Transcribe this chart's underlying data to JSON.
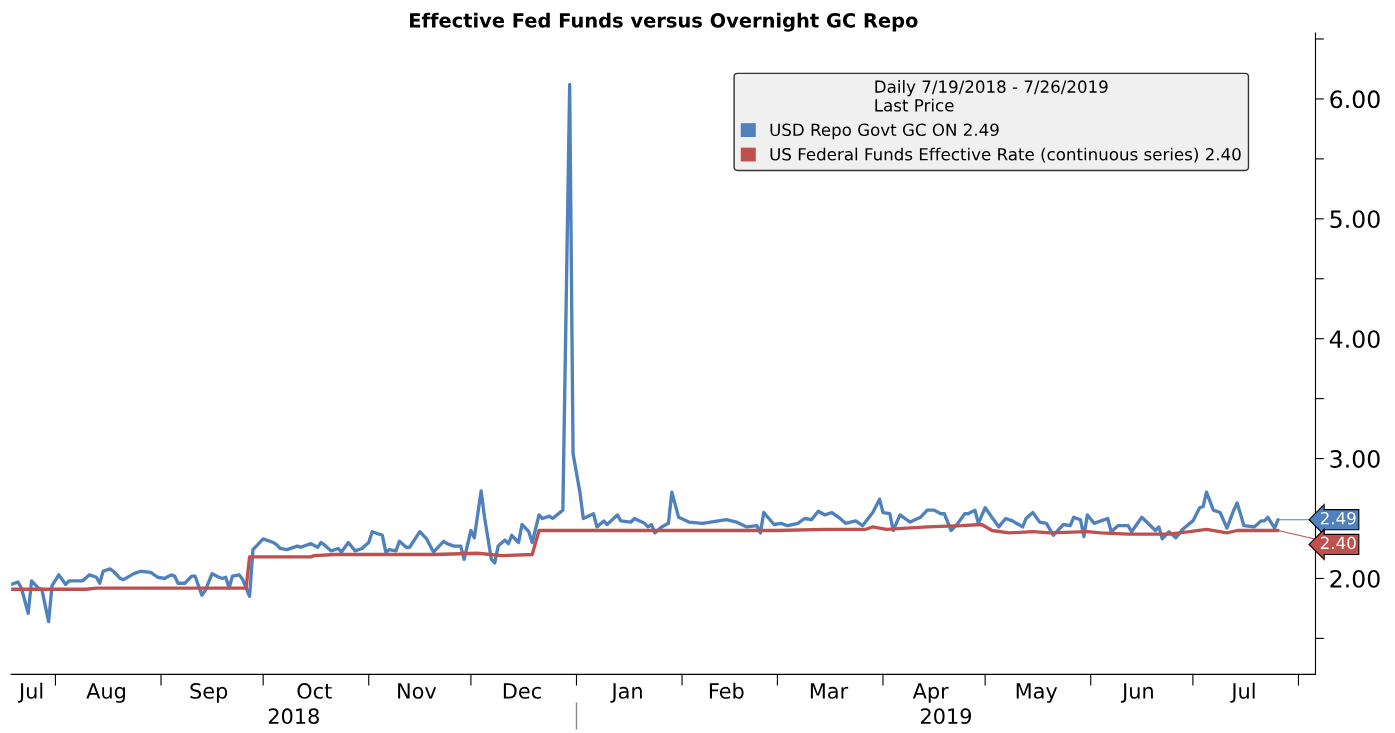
{
  "chart_data": {
    "type": "line",
    "title": "Effective Fed Funds versus Overnight GC Repo",
    "legend_title": "Daily 7/19/2018 - 7/26/2019\nLast Price",
    "legend": "top right",
    "grid": false,
    "xlim": [
      "2018-07-19",
      "2019-08-06"
    ],
    "xticks": [
      {
        "value": "2018-07-25",
        "label": "Jul"
      },
      {
        "value": "2018-08-01",
        "label": null
      },
      {
        "value": "2018-08-16",
        "label": "Aug"
      },
      {
        "value": "2018-09-01",
        "label": null
      },
      {
        "value": "2018-09-15",
        "label": "Sep"
      },
      {
        "value": "2018-10-01",
        "label": null
      },
      {
        "value": "2018-10-16",
        "label": "Oct"
      },
      {
        "value": "2018-11-01",
        "label": null
      },
      {
        "value": "2018-11-15",
        "label": "Nov"
      },
      {
        "value": "2018-12-01",
        "label": null
      },
      {
        "value": "2018-12-16",
        "label": "Dec"
      },
      {
        "value": "2019-01-01",
        "label": null
      },
      {
        "value": "2019-01-16",
        "label": "Jan"
      },
      {
        "value": "2019-02-01",
        "label": null
      },
      {
        "value": "2019-02-14",
        "label": "Feb"
      },
      {
        "value": "2019-03-01",
        "label": null
      },
      {
        "value": "2019-03-16",
        "label": "Mar"
      },
      {
        "value": "2019-04-01",
        "label": null
      },
      {
        "value": "2019-04-15",
        "label": "Apr"
      },
      {
        "value": "2019-05-01",
        "label": null
      },
      {
        "value": "2019-05-16",
        "label": "May"
      },
      {
        "value": "2019-06-01",
        "label": null
      },
      {
        "value": "2019-06-15",
        "label": "Jun"
      },
      {
        "value": "2019-07-01",
        "label": null
      },
      {
        "value": "2019-07-16",
        "label": "Jul"
      },
      {
        "value": "2019-08-01",
        "label": null
      }
    ],
    "ylim": [
      1.2,
      6.55
    ],
    "yticks": [
      {
        "value": 1.5,
        "label": null
      },
      {
        "value": 2,
        "label": "2.00"
      },
      {
        "value": 2.5,
        "label": null
      },
      {
        "value": 3,
        "label": "3.00"
      },
      {
        "value": 3.5,
        "label": null
      },
      {
        "value": 4,
        "label": "4.00"
      },
      {
        "value": 4.5,
        "label": null
      },
      {
        "value": 5,
        "label": "5.00"
      },
      {
        "value": 5.5,
        "label": null
      },
      {
        "value": 6,
        "label": "6.00"
      },
      {
        "value": 6.5,
        "label": null
      }
    ],
    "annotations": [
      "2018",
      "2019",
      {
        "text": "2.49",
        "x": "2019-07-26",
        "y": 2.49
      },
      {
        "text": "2.40",
        "x": "2019-07-26",
        "y": 2.4
      }
    ],
    "series": [
      {
        "name": "USD Repo Govt GC ON 2.49",
        "color": "#4f81bd",
        "x": [
          "2018-07-19",
          "2018-07-21",
          "2018-07-22",
          "2018-07-24",
          "2018-07-25",
          "2018-07-27",
          "2018-07-28",
          "2018-07-30",
          "2018-07-31",
          "2018-08-02",
          "2018-08-04",
          "2018-08-05",
          "2018-08-09",
          "2018-08-11",
          "2018-08-13",
          "2018-08-14",
          "2018-08-15",
          "2018-08-17",
          "2018-08-18",
          "2018-08-20",
          "2018-08-21",
          "2018-08-24",
          "2018-08-26",
          "2018-08-29",
          "2018-08-31",
          "2018-09-02",
          "2018-09-04",
          "2018-09-05",
          "2018-09-06",
          "2018-09-08",
          "2018-09-10",
          "2018-09-11",
          "2018-09-13",
          "2018-09-14",
          "2018-09-16",
          "2018-09-18",
          "2018-09-19",
          "2018-09-20",
          "2018-09-21",
          "2018-09-22",
          "2018-09-24",
          "2018-09-25",
          "2018-09-27",
          "2018-09-28",
          "2018-10-01",
          "2018-10-02",
          "2018-10-04",
          "2018-10-05",
          "2018-10-06",
          "2018-10-08",
          "2018-10-11",
          "2018-10-12",
          "2018-10-15",
          "2018-10-17",
          "2018-10-18",
          "2018-10-19",
          "2018-10-21",
          "2018-10-23",
          "2018-10-24",
          "2018-10-26",
          "2018-10-28",
          "2018-10-30",
          "2018-11-01",
          "2018-11-02",
          "2018-11-05",
          "2018-11-06",
          "2018-11-07",
          "2018-11-09",
          "2018-11-10",
          "2018-11-12",
          "2018-11-13",
          "2018-11-16",
          "2018-11-18",
          "2018-11-20",
          "2018-11-23",
          "2018-11-24",
          "2018-11-26",
          "2018-11-28",
          "2018-11-29",
          "2018-12-01",
          "2018-12-02",
          "2018-12-04",
          "2018-12-05",
          "2018-12-07",
          "2018-12-08",
          "2018-12-09",
          "2018-12-11",
          "2018-12-12",
          "2018-12-13",
          "2018-12-15",
          "2018-12-16",
          "2018-12-18",
          "2018-12-19",
          "2018-12-21",
          "2018-12-22",
          "2018-12-24",
          "2018-12-25",
          "2018-12-28",
          "2018-12-30",
          "2018-12-31",
          "2019-01-02",
          "2019-01-03",
          "2019-01-06",
          "2019-01-07",
          "2019-01-09",
          "2019-01-10",
          "2019-01-13",
          "2019-01-14",
          "2019-01-17",
          "2019-01-18",
          "2019-01-21",
          "2019-01-22",
          "2019-01-23",
          "2019-01-24",
          "2019-01-26",
          "2019-01-28",
          "2019-01-29",
          "2019-01-31",
          "2019-02-03",
          "2019-02-07",
          "2019-02-14",
          "2019-02-17",
          "2019-02-20",
          "2019-02-23",
          "2019-02-24",
          "2019-02-25",
          "2019-02-28",
          "2019-03-02",
          "2019-03-04",
          "2019-03-07",
          "2019-03-09",
          "2019-03-11",
          "2019-03-13",
          "2019-03-15",
          "2019-03-17",
          "2019-03-19",
          "2019-03-21",
          "2019-03-24",
          "2019-03-26",
          "2019-03-29",
          "2019-03-31",
          "2019-04-01",
          "2019-04-03",
          "2019-04-04",
          "2019-04-06",
          "2019-04-07",
          "2019-04-09",
          "2019-04-12",
          "2019-04-14",
          "2019-04-16",
          "2019-04-18",
          "2019-04-19",
          "2019-04-21",
          "2019-04-23",
          "2019-04-25",
          "2019-04-26",
          "2019-04-28",
          "2019-04-29",
          "2019-05-01",
          "2019-05-02",
          "2019-05-05",
          "2019-05-07",
          "2019-05-09",
          "2019-05-12",
          "2019-05-13",
          "2019-05-15",
          "2019-05-17",
          "2019-05-19",
          "2019-05-21",
          "2019-05-24",
          "2019-05-26",
          "2019-05-27",
          "2019-05-29",
          "2019-05-30",
          "2019-05-31",
          "2019-06-02",
          "2019-06-04",
          "2019-06-06",
          "2019-06-07",
          "2019-06-09",
          "2019-06-12",
          "2019-06-13",
          "2019-06-16",
          "2019-06-20",
          "2019-06-21",
          "2019-06-22",
          "2019-06-24",
          "2019-06-26",
          "2019-06-28",
          "2019-07-01",
          "2019-07-03",
          "2019-07-04",
          "2019-07-05",
          "2019-07-07",
          "2019-07-09",
          "2019-07-11",
          "2019-07-13",
          "2019-07-14",
          "2019-07-16",
          "2019-07-19",
          "2019-07-21",
          "2019-07-22",
          "2019-07-23",
          "2019-07-25",
          "2019-07-26"
        ],
        "values": [
          1.95,
          1.97,
          1.92,
          1.71,
          1.98,
          1.92,
          1.91,
          1.64,
          1.94,
          2.03,
          1.95,
          1.98,
          1.98,
          2.03,
          2.01,
          1.96,
          2.06,
          2.08,
          2.06,
          2.0,
          1.99,
          2.04,
          2.06,
          2.05,
          2.01,
          2.0,
          2.03,
          2.02,
          1.96,
          1.96,
          2.02,
          2.02,
          1.86,
          1.9,
          2.04,
          2.01,
          2.0,
          2.01,
          1.92,
          2.02,
          2.03,
          1.99,
          1.85,
          2.24,
          2.33,
          2.32,
          2.3,
          2.28,
          2.25,
          2.24,
          2.27,
          2.26,
          2.29,
          2.26,
          2.3,
          2.28,
          2.23,
          2.25,
          2.22,
          2.3,
          2.23,
          2.25,
          2.3,
          2.39,
          2.36,
          2.22,
          2.24,
          2.23,
          2.31,
          2.26,
          2.26,
          2.39,
          2.33,
          2.22,
          2.31,
          2.29,
          2.27,
          2.27,
          2.16,
          2.4,
          2.34,
          2.73,
          2.51,
          2.16,
          2.13,
          2.27,
          2.32,
          2.29,
          2.36,
          2.3,
          2.45,
          2.39,
          2.3,
          2.53,
          2.5,
          2.52,
          2.5,
          2.57,
          6.12,
          3.04,
          2.72,
          2.5,
          2.54,
          2.43,
          2.48,
          2.45,
          2.53,
          2.48,
          2.47,
          2.5,
          2.46,
          2.43,
          2.45,
          2.38,
          2.43,
          2.46,
          2.72,
          2.51,
          2.47,
          2.46,
          2.49,
          2.47,
          2.43,
          2.44,
          2.38,
          2.55,
          2.45,
          2.46,
          2.44,
          2.46,
          2.5,
          2.49,
          2.56,
          2.53,
          2.55,
          2.51,
          2.46,
          2.48,
          2.44,
          2.55,
          2.66,
          2.55,
          2.54,
          2.4,
          2.53,
          2.51,
          2.47,
          2.51,
          2.57,
          2.57,
          2.54,
          2.54,
          2.4,
          2.46,
          2.54,
          2.54,
          2.57,
          2.46,
          2.59,
          2.55,
          2.43,
          2.5,
          2.48,
          2.43,
          2.5,
          2.55,
          2.47,
          2.46,
          2.36,
          2.45,
          2.44,
          2.51,
          2.49,
          2.35,
          2.53,
          2.46,
          2.48,
          2.5,
          2.39,
          2.44,
          2.44,
          2.39,
          2.51,
          2.4,
          2.43,
          2.33,
          2.39,
          2.34,
          2.41,
          2.48,
          2.59,
          2.6,
          2.72,
          2.57,
          2.55,
          2.42,
          2.57,
          2.63,
          2.44,
          2.43,
          2.48,
          2.48,
          2.51,
          2.42,
          2.49
        ]
      },
      {
        "name": "US Federal Funds Effective Rate (continuous series) 2.40",
        "color": "#c0504d",
        "x": [
          "2018-07-19",
          "2018-08-10",
          "2018-08-13",
          "2018-09-26",
          "2018-09-27",
          "2018-10-15",
          "2018-10-16",
          "2018-10-22",
          "2018-11-20",
          "2018-12-03",
          "2018-12-10",
          "2018-12-19",
          "2018-12-21",
          "2019-03-01",
          "2019-03-15",
          "2019-03-27",
          "2019-03-29",
          "2019-04-02",
          "2019-04-14",
          "2019-04-24",
          "2019-04-30",
          "2019-05-03",
          "2019-05-08",
          "2019-05-15",
          "2019-05-20",
          "2019-05-31",
          "2019-06-04",
          "2019-06-12",
          "2019-06-24",
          "2019-06-30",
          "2019-07-05",
          "2019-07-11",
          "2019-07-14",
          "2019-07-26"
        ],
        "values": [
          1.91,
          1.91,
          1.92,
          1.92,
          2.18,
          2.18,
          2.19,
          2.2,
          2.2,
          2.21,
          2.19,
          2.2,
          2.4,
          2.4,
          2.41,
          2.41,
          2.43,
          2.41,
          2.43,
          2.44,
          2.45,
          2.4,
          2.38,
          2.39,
          2.38,
          2.39,
          2.38,
          2.37,
          2.37,
          2.39,
          2.41,
          2.38,
          2.4,
          2.4
        ]
      }
    ]
  }
}
